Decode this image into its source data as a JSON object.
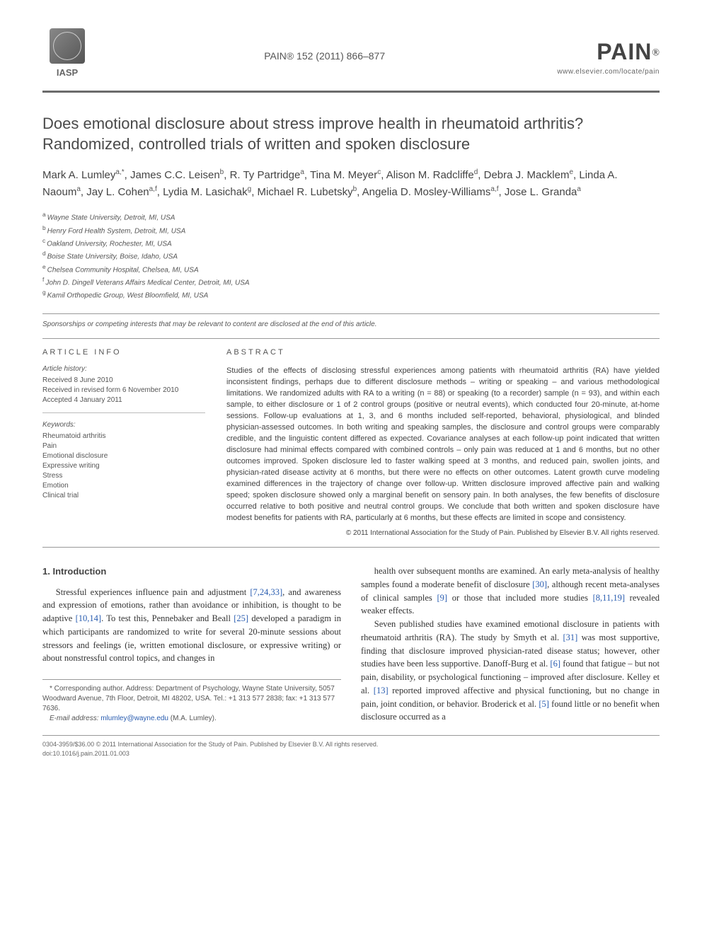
{
  "header": {
    "iasp": "IASP",
    "journal_ref": "PAIN® 152 (2011) 866–877",
    "pain_logo": "PAIN",
    "pain_sup": "®",
    "url": "www.elsevier.com/locate/pain"
  },
  "title": "Does emotional disclosure about stress improve health in rheumatoid arthritis? Randomized, controlled trials of written and spoken disclosure",
  "authors_html": "Mark A. Lumley<sup>a,*</sup>, James C.C. Leisen<sup>b</sup>, R. Ty Partridge<sup>a</sup>, Tina M. Meyer<sup>c</sup>, Alison M. Radcliffe<sup>d</sup>, Debra J. Macklem<sup>e</sup>, Linda A. Naoum<sup>a</sup>, Jay L. Cohen<sup>a,f</sup>, Lydia M. Lasichak<sup>g</sup>, Michael R. Lubetsky<sup>b</sup>, Angelia D. Mosley-Williams<sup>a,f</sup>, Jose L. Granda<sup>a</sup>",
  "affiliations": [
    {
      "sup": "a",
      "text": "Wayne State University, Detroit, MI, USA"
    },
    {
      "sup": "b",
      "text": "Henry Ford Health System, Detroit, MI, USA"
    },
    {
      "sup": "c",
      "text": "Oakland University, Rochester, MI, USA"
    },
    {
      "sup": "d",
      "text": "Boise State University, Boise, Idaho, USA"
    },
    {
      "sup": "e",
      "text": "Chelsea Community Hospital, Chelsea, MI, USA"
    },
    {
      "sup": "f",
      "text": "John D. Dingell Veterans Affairs Medical Center, Detroit, MI, USA"
    },
    {
      "sup": "g",
      "text": "Kamil Orthopedic Group, West Bloomfield, MI, USA"
    }
  ],
  "sponsorship": "Sponsorships or competing interests that may be relevant to content are disclosed at the end of this article.",
  "article_info": {
    "heading": "ARTICLE INFO",
    "history_label": "Article history:",
    "history": [
      "Received 8 June 2010",
      "Received in revised form 6 November 2010",
      "Accepted 4 January 2011"
    ],
    "keywords_label": "Keywords:",
    "keywords": [
      "Rheumatoid arthritis",
      "Pain",
      "Emotional disclosure",
      "Expressive writing",
      "Stress",
      "Emotion",
      "Clinical trial"
    ]
  },
  "abstract": {
    "heading": "ABSTRACT",
    "text": "Studies of the effects of disclosing stressful experiences among patients with rheumatoid arthritis (RA) have yielded inconsistent findings, perhaps due to different disclosure methods – writing or speaking – and various methodological limitations. We randomized adults with RA to a writing (n = 88) or speaking (to a recorder) sample (n = 93), and within each sample, to either disclosure or 1 of 2 control groups (positive or neutral events), which conducted four 20-minute, at-home sessions. Follow-up evaluations at 1, 3, and 6 months included self-reported, behavioral, physiological, and blinded physician-assessed outcomes. In both writing and speaking samples, the disclosure and control groups were comparably credible, and the linguistic content differed as expected. Covariance analyses at each follow-up point indicated that written disclosure had minimal effects compared with combined controls – only pain was reduced at 1 and 6 months, but no other outcomes improved. Spoken disclosure led to faster walking speed at 3 months, and reduced pain, swollen joints, and physician-rated disease activity at 6 months, but there were no effects on other outcomes. Latent growth curve modeling examined differences in the trajectory of change over follow-up. Written disclosure improved affective pain and walking speed; spoken disclosure showed only a marginal benefit on sensory pain. In both analyses, the few benefits of disclosure occurred relative to both positive and neutral control groups. We conclude that both written and spoken disclosure have modest benefits for patients with RA, particularly at 6 months, but these effects are limited in scope and consistency.",
    "copyright": "© 2011 International Association for the Study of Pain. Published by Elsevier B.V. All rights reserved."
  },
  "intro": {
    "heading": "1. Introduction",
    "p1_a": "Stressful experiences influence pain and adjustment ",
    "p1_ref1": "[7,24,33]",
    "p1_b": ", and awareness and expression of emotions, rather than avoidance or inhibition, is thought to be adaptive ",
    "p1_ref2": "[10,14]",
    "p1_c": ". To test this, Pennebaker and Beall ",
    "p1_ref3": "[25]",
    "p1_d": " developed a paradigm in which participants are randomized to write for several 20-minute sessions about stressors and feelings (ie, written emotional disclosure, or expressive writing) or about nonstressful control topics, and changes in",
    "p2_a": "health over subsequent months are examined. An early meta-analysis of healthy samples found a moderate benefit of disclosure ",
    "p2_ref1": "[30]",
    "p2_b": ", although recent meta-analyses of clinical samples ",
    "p2_ref2": "[9]",
    "p2_c": " or those that included more studies ",
    "p2_ref3": "[8,11,19]",
    "p2_d": " revealed weaker effects.",
    "p3_a": "Seven published studies have examined emotional disclosure in patients with rheumatoid arthritis (RA). The study by Smyth et al. ",
    "p3_ref1": "[31]",
    "p3_b": " was most supportive, finding that disclosure improved physician-rated disease status; however, other studies have been less supportive. Danoff-Burg et al. ",
    "p3_ref2": "[6]",
    "p3_c": " found that fatigue – but not pain, disability, or psychological functioning – improved after disclosure. Kelley et al. ",
    "p3_ref3": "[13]",
    "p3_d": " reported improved affective and physical functioning, but no change in pain, joint condition, or behavior. Broderick et al. ",
    "p3_ref4": "[5]",
    "p3_e": " found little or no benefit when disclosure occurred as a"
  },
  "corresponding": {
    "star": "* ",
    "text": "Corresponding author. Address: Department of Psychology, Wayne State University, 5057 Woodward Avenue, 7th Floor, Detroit, MI 48202, USA. Tel.: +1 313 577 2838; fax: +1 313 577 7636.",
    "email_label": "E-mail address: ",
    "email": "mlumley@wayne.edu",
    "email_suffix": " (M.A. Lumley)."
  },
  "footer": {
    "line1": "0304-3959/$36.00 © 2011 International Association for the Study of Pain. Published by Elsevier B.V. All rights reserved.",
    "line2": "doi:10.1016/j.pain.2011.01.003"
  },
  "colors": {
    "rule": "#6b6b6b",
    "text": "#333333",
    "muted": "#555555",
    "link": "#2a5db0"
  }
}
